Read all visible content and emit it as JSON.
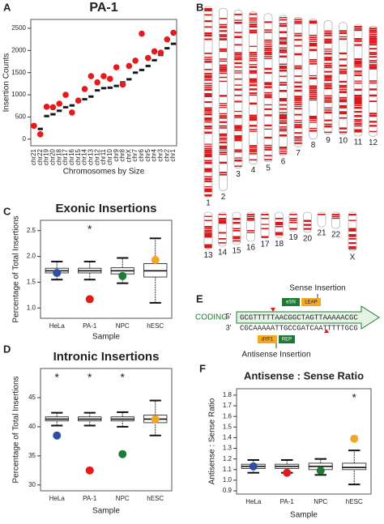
{
  "chart_data": [
    {
      "type": "box",
      "panel": "A",
      "title": "PA-1",
      "x_label": "Chromosomes by Size",
      "y_label": "Insertion Counts",
      "categories": [
        "chr21",
        "chr22",
        "chr19",
        "chr20",
        "chr18",
        "chr17",
        "chr16",
        "chr15",
        "chr14",
        "chr13",
        "chr12",
        "chr11",
        "chr10",
        "chr9",
        "chr8",
        "chrX",
        "chr7",
        "chr6",
        "chr5",
        "chr4",
        "chr3",
        "chr2",
        "chr1"
      ],
      "boxes": {
        "q1": [
          290,
          210,
          500,
          540,
          620,
          700,
          740,
          830,
          880,
          940,
          1080,
          1130,
          1140,
          1180,
          1260,
          1330,
          1480,
          1540,
          1630,
          1760,
          1880,
          2030,
          2130
        ],
        "median": [
          310,
          230,
          520,
          560,
          640,
          720,
          760,
          850,
          900,
          960,
          1100,
          1150,
          1160,
          1200,
          1280,
          1350,
          1500,
          1560,
          1650,
          1780,
          1900,
          2050,
          2150
        ],
        "q3": [
          330,
          250,
          540,
          580,
          660,
          740,
          780,
          870,
          920,
          980,
          1120,
          1170,
          1180,
          1220,
          1300,
          1370,
          1520,
          1580,
          1670,
          1800,
          1920,
          2070,
          2170
        ]
      },
      "observed": {
        "values": [
          300,
          110,
          730,
          720,
          800,
          1000,
          600,
          870,
          1130,
          1420,
          1280,
          1420,
          1360,
          1620,
          1230,
          1650,
          1770,
          2380,
          1830,
          1980,
          1950,
          2250,
          2400
        ],
        "color": "#e41a1c"
      },
      "ylim": [
        -150,
        2700
      ],
      "yticks": [
        0,
        500,
        1000,
        1500,
        2000,
        2500
      ]
    },
    {
      "type": "box",
      "panel": "C",
      "title": "Exonic Insertions",
      "x_label": "Sample",
      "y_label": "Percentage of Total Insertions",
      "categories": [
        "HeLa",
        "PA-1",
        "NPC",
        "hESC"
      ],
      "boxes": {
        "whisker_low": [
          1.55,
          1.55,
          1.48,
          1.1
        ],
        "q1": [
          1.68,
          1.68,
          1.66,
          1.6
        ],
        "median": [
          1.72,
          1.72,
          1.72,
          1.72
        ],
        "q3": [
          1.77,
          1.77,
          1.78,
          1.86
        ],
        "whisker_high": [
          1.9,
          1.9,
          1.97,
          2.35
        ]
      },
      "observed": {
        "values": [
          1.68,
          1.17,
          1.62,
          1.93
        ],
        "colors": [
          "#2e4fa3",
          "#e31a1c",
          "#1e7b34",
          "#f5a623"
        ]
      },
      "significance": [
        null,
        "*",
        null,
        null
      ],
      "ylim": [
        0.8,
        2.7
      ],
      "yticks": [
        {
          "value": 1,
          "label": "1.0"
        },
        1.5,
        {
          "value": 2,
          "label": "2.0"
        },
        2.5
      ]
    },
    {
      "type": "box",
      "panel": "D",
      "title": "Intronic Insertions",
      "x_label": "Sample",
      "y_label": "Percentage of Total Insertions",
      "categories": [
        "HeLa",
        "PA-1",
        "NPC",
        "hESC"
      ],
      "boxes": {
        "whisker_low": [
          40.2,
          40.2,
          40.0,
          38.5
        ],
        "q1": [
          41.0,
          41.0,
          41.0,
          40.7
        ],
        "median": [
          41.3,
          41.3,
          41.3,
          41.3
        ],
        "q3": [
          41.7,
          41.7,
          41.7,
          42.0
        ],
        "whisker_high": [
          42.4,
          42.4,
          42.5,
          44.5
        ]
      },
      "observed": {
        "values": [
          38.5,
          32.5,
          35.3,
          41.3
        ],
        "colors": [
          "#2e4fa3",
          "#e31a1c",
          "#1e7b34",
          "#f5a623"
        ]
      },
      "significance": [
        "*",
        "*",
        "*",
        null
      ],
      "ylim": [
        29,
        50
      ],
      "yticks": [
        30,
        35,
        40,
        45
      ]
    },
    {
      "type": "box",
      "panel": "F",
      "title": "Antisense : Sense Ratio",
      "x_label": "Sample",
      "y_label": "Antisense : Sense Ratio",
      "categories": [
        "HeLa",
        "PA-1",
        "NPC",
        "hESC"
      ],
      "boxes": {
        "whisker_low": [
          1.07,
          1.07,
          1.05,
          0.96
        ],
        "q1": [
          1.11,
          1.11,
          1.1,
          1.1
        ],
        "median": [
          1.13,
          1.13,
          1.13,
          1.12
        ],
        "q3": [
          1.15,
          1.15,
          1.16,
          1.16
        ],
        "whisker_high": [
          1.19,
          1.19,
          1.2,
          1.28
        ]
      },
      "observed": {
        "values": [
          1.13,
          1.07,
          1.09,
          1.39
        ],
        "colors": [
          "#2e4fa3",
          "#e31a1c",
          "#1e7b34",
          "#f5a623"
        ]
      },
      "significance": [
        null,
        null,
        null,
        "*"
      ],
      "ylim": [
        0.87,
        1.86
      ],
      "yticks": [
        0.9,
        {
          "value": 1,
          "label": "1.0"
        },
        1.1,
        1.2,
        1.3,
        1.4,
        1.5,
        1.6,
        1.7,
        1.8
      ]
    }
  ],
  "ideogram": {
    "panel": "B",
    "labels": [
      "1",
      "2",
      "3",
      "4",
      "5",
      "6",
      "7",
      "8",
      "9",
      "10",
      "11",
      "12",
      "13",
      "14",
      "15",
      "16",
      "17",
      "18",
      "19",
      "20",
      "21",
      "22",
      "X"
    ]
  },
  "diagram": {
    "panel": "E",
    "strand": "CODING",
    "five_prime": "5'",
    "three_prime": "3'",
    "top_sequence": "GCGTTTTTAACGGCTAGTTAAAAACGC",
    "bottom_sequence": "CGCAAAAATTGCCGATCAATTTTTGCG",
    "sense": {
      "label": "Sense Insertion",
      "parts": [
        "eSN",
        "LEAP"
      ]
    },
    "antisense": {
      "label": "Antisense Insertion",
      "parts": [
        "dYF1",
        "REP"
      ]
    }
  }
}
